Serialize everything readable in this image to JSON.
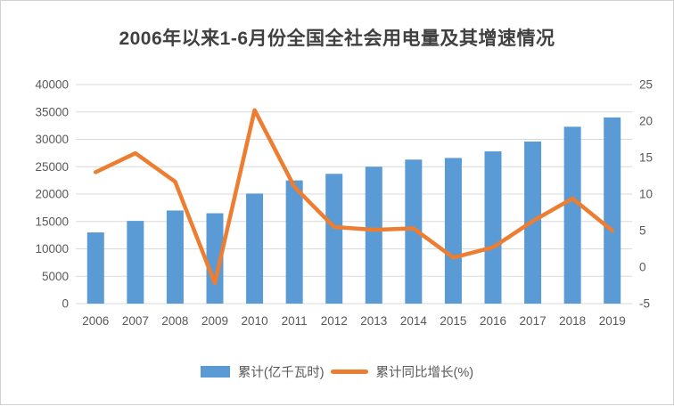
{
  "title": "2006年以来1-6月份全国全社会用电量及其增速情况",
  "colors": {
    "bar": "#5B9BD5",
    "line": "#ED7D31",
    "gridline": "#D9D9D9",
    "axis_text": "#595959",
    "title_text": "#404040",
    "background": "#FFFFFF",
    "frame_border": "#D2D2D2"
  },
  "chart_data": {
    "type": "bar+line",
    "title": "2006年以来1-6月份全国全社会用电量及其增速情况",
    "categories": [
      "2006",
      "2007",
      "2008",
      "2009",
      "2010",
      "2011",
      "2012",
      "2013",
      "2014",
      "2015",
      "2016",
      "2017",
      "2018",
      "2019"
    ],
    "series": [
      {
        "name": "累计(亿千瓦时)",
        "type": "bar",
        "axis": "left",
        "color": "#5B9BD5",
        "values": [
          13000,
          15100,
          17000,
          16500,
          20100,
          22500,
          23700,
          25000,
          26300,
          26600,
          27800,
          29600,
          32300,
          34000
        ]
      },
      {
        "name": "累计同比增长(%)",
        "type": "line",
        "axis": "right",
        "color": "#ED7D31",
        "values": [
          13.0,
          15.6,
          11.7,
          -2.2,
          21.5,
          11.0,
          5.5,
          5.1,
          5.3,
          1.3,
          2.7,
          6.3,
          9.4,
          5.0
        ]
      }
    ],
    "left_axis": {
      "min": 0,
      "max": 40000,
      "step": 5000,
      "ticks": [
        0,
        5000,
        10000,
        15000,
        20000,
        25000,
        30000,
        35000,
        40000
      ]
    },
    "right_axis": {
      "min": -5,
      "max": 25,
      "step": 5,
      "ticks": [
        -5,
        0,
        5,
        10,
        15,
        20,
        25
      ]
    },
    "grid": "horizontal-on",
    "legend_position": "bottom",
    "xlabel": "",
    "ylabel_left": "",
    "ylabel_right": ""
  }
}
